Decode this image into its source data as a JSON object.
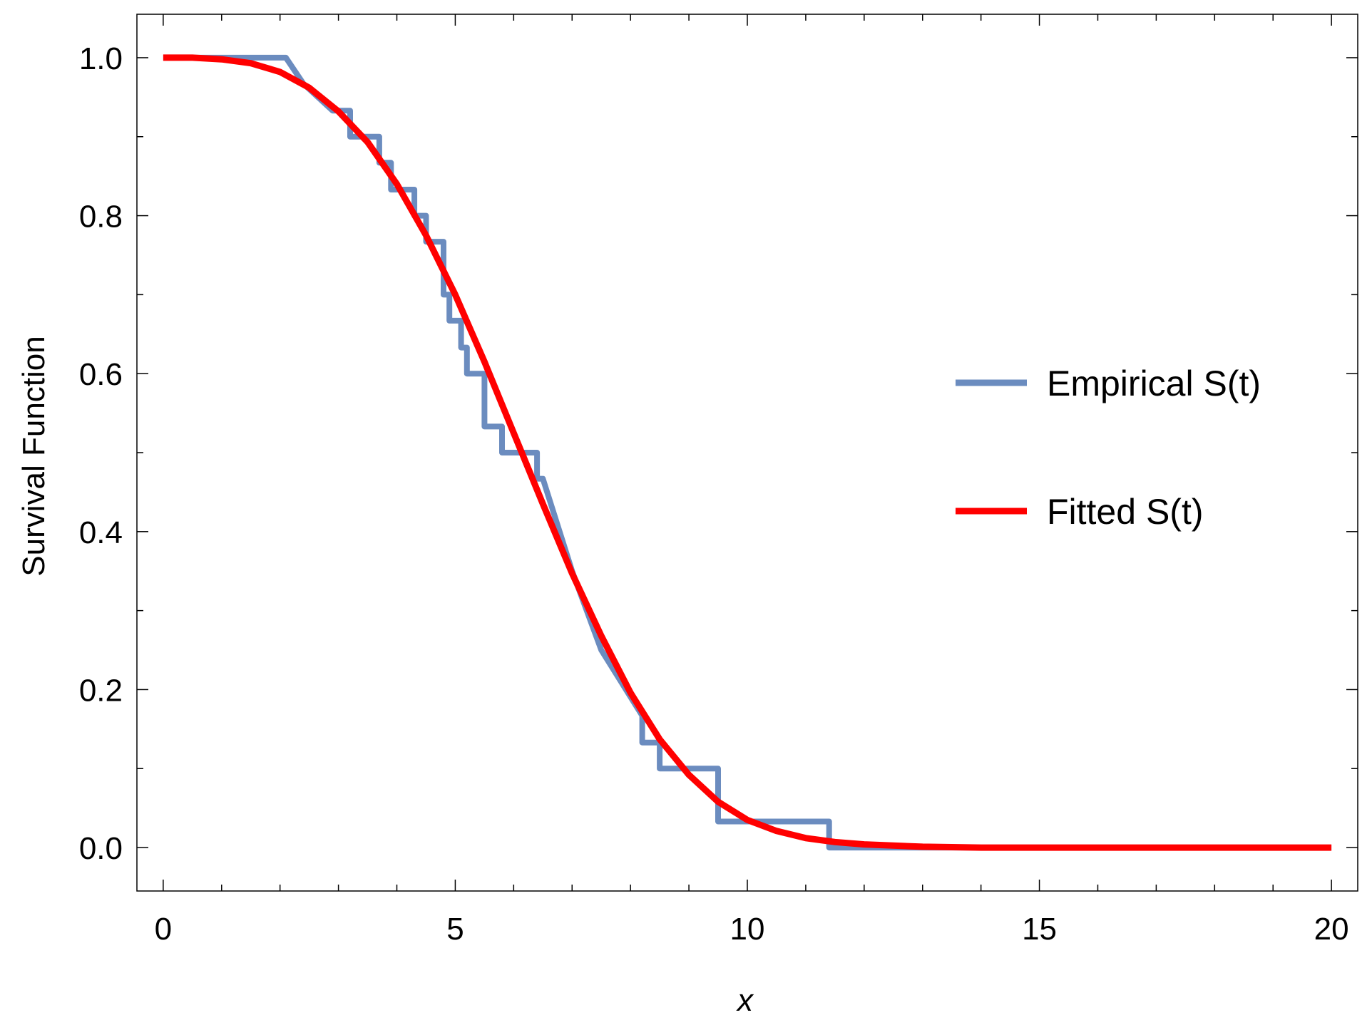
{
  "chart_data": {
    "type": "line",
    "xlabel": "x",
    "ylabel": "Survival Function",
    "xlim": [
      -0.45,
      20.45
    ],
    "ylim": [
      -0.055,
      1.055
    ],
    "xticks": [
      0,
      5,
      10,
      15,
      20
    ],
    "xtick_labels": [
      "0",
      "5",
      "10",
      "15",
      "20"
    ],
    "yticks": [
      0.0,
      0.2,
      0.4,
      0.6,
      0.8,
      1.0
    ],
    "ytick_labels": [
      "0.0",
      "0.2",
      "0.4",
      "0.6",
      "0.8",
      "1.0"
    ],
    "x_minor_step": 1,
    "y_minor_step": 0.1,
    "grid": false,
    "legend_position": "right",
    "series": [
      {
        "name": "Empirical S(t)",
        "color": "#6b8cbf",
        "style": "step",
        "points": [
          [
            0,
            1.0
          ],
          [
            2.1,
            1.0
          ],
          [
            2.4,
            0.967
          ],
          [
            2.9,
            0.933
          ],
          [
            3.2,
            0.933
          ],
          [
            3.2,
            0.9
          ],
          [
            3.7,
            0.9
          ],
          [
            3.7,
            0.867
          ],
          [
            3.9,
            0.867
          ],
          [
            3.9,
            0.833
          ],
          [
            4.3,
            0.833
          ],
          [
            4.3,
            0.8
          ],
          [
            4.5,
            0.8
          ],
          [
            4.5,
            0.767
          ],
          [
            4.8,
            0.767
          ],
          [
            4.8,
            0.7
          ],
          [
            4.9,
            0.7
          ],
          [
            4.9,
            0.667
          ],
          [
            5.1,
            0.667
          ],
          [
            5.1,
            0.633
          ],
          [
            5.2,
            0.633
          ],
          [
            5.2,
            0.6
          ],
          [
            5.5,
            0.6
          ],
          [
            5.5,
            0.533
          ],
          [
            5.8,
            0.533
          ],
          [
            5.8,
            0.5
          ],
          [
            6.4,
            0.5
          ],
          [
            6.4,
            0.467
          ],
          [
            6.5,
            0.467
          ],
          [
            7.0,
            0.35
          ],
          [
            7.5,
            0.25
          ],
          [
            8.2,
            0.167
          ],
          [
            8.2,
            0.133
          ],
          [
            8.5,
            0.133
          ],
          [
            8.5,
            0.1
          ],
          [
            9.5,
            0.1
          ],
          [
            9.5,
            0.033
          ],
          [
            11.4,
            0.033
          ],
          [
            11.4,
            0.0
          ],
          [
            20,
            0.0
          ]
        ]
      },
      {
        "name": "Fitted S(t)",
        "color": "#ff0000",
        "style": "smooth",
        "points": [
          [
            0,
            1.0
          ],
          [
            0.5,
            1.0
          ],
          [
            1.0,
            0.998
          ],
          [
            1.5,
            0.993
          ],
          [
            2.0,
            0.982
          ],
          [
            2.5,
            0.962
          ],
          [
            3.0,
            0.932
          ],
          [
            3.5,
            0.893
          ],
          [
            4.0,
            0.84
          ],
          [
            4.5,
            0.775
          ],
          [
            5.0,
            0.7
          ],
          [
            5.5,
            0.615
          ],
          [
            6.0,
            0.525
          ],
          [
            6.5,
            0.435
          ],
          [
            7.0,
            0.347
          ],
          [
            7.5,
            0.268
          ],
          [
            8.0,
            0.196
          ],
          [
            8.5,
            0.137
          ],
          [
            9.0,
            0.092
          ],
          [
            9.5,
            0.058
          ],
          [
            10.0,
            0.035
          ],
          [
            10.5,
            0.021
          ],
          [
            11.0,
            0.012
          ],
          [
            11.5,
            0.007
          ],
          [
            12.0,
            0.004
          ],
          [
            13.0,
            0.001
          ],
          [
            14.0,
            0.0
          ],
          [
            16.0,
            0.0
          ],
          [
            18.0,
            0.0
          ],
          [
            20.0,
            0.0
          ]
        ]
      }
    ]
  }
}
